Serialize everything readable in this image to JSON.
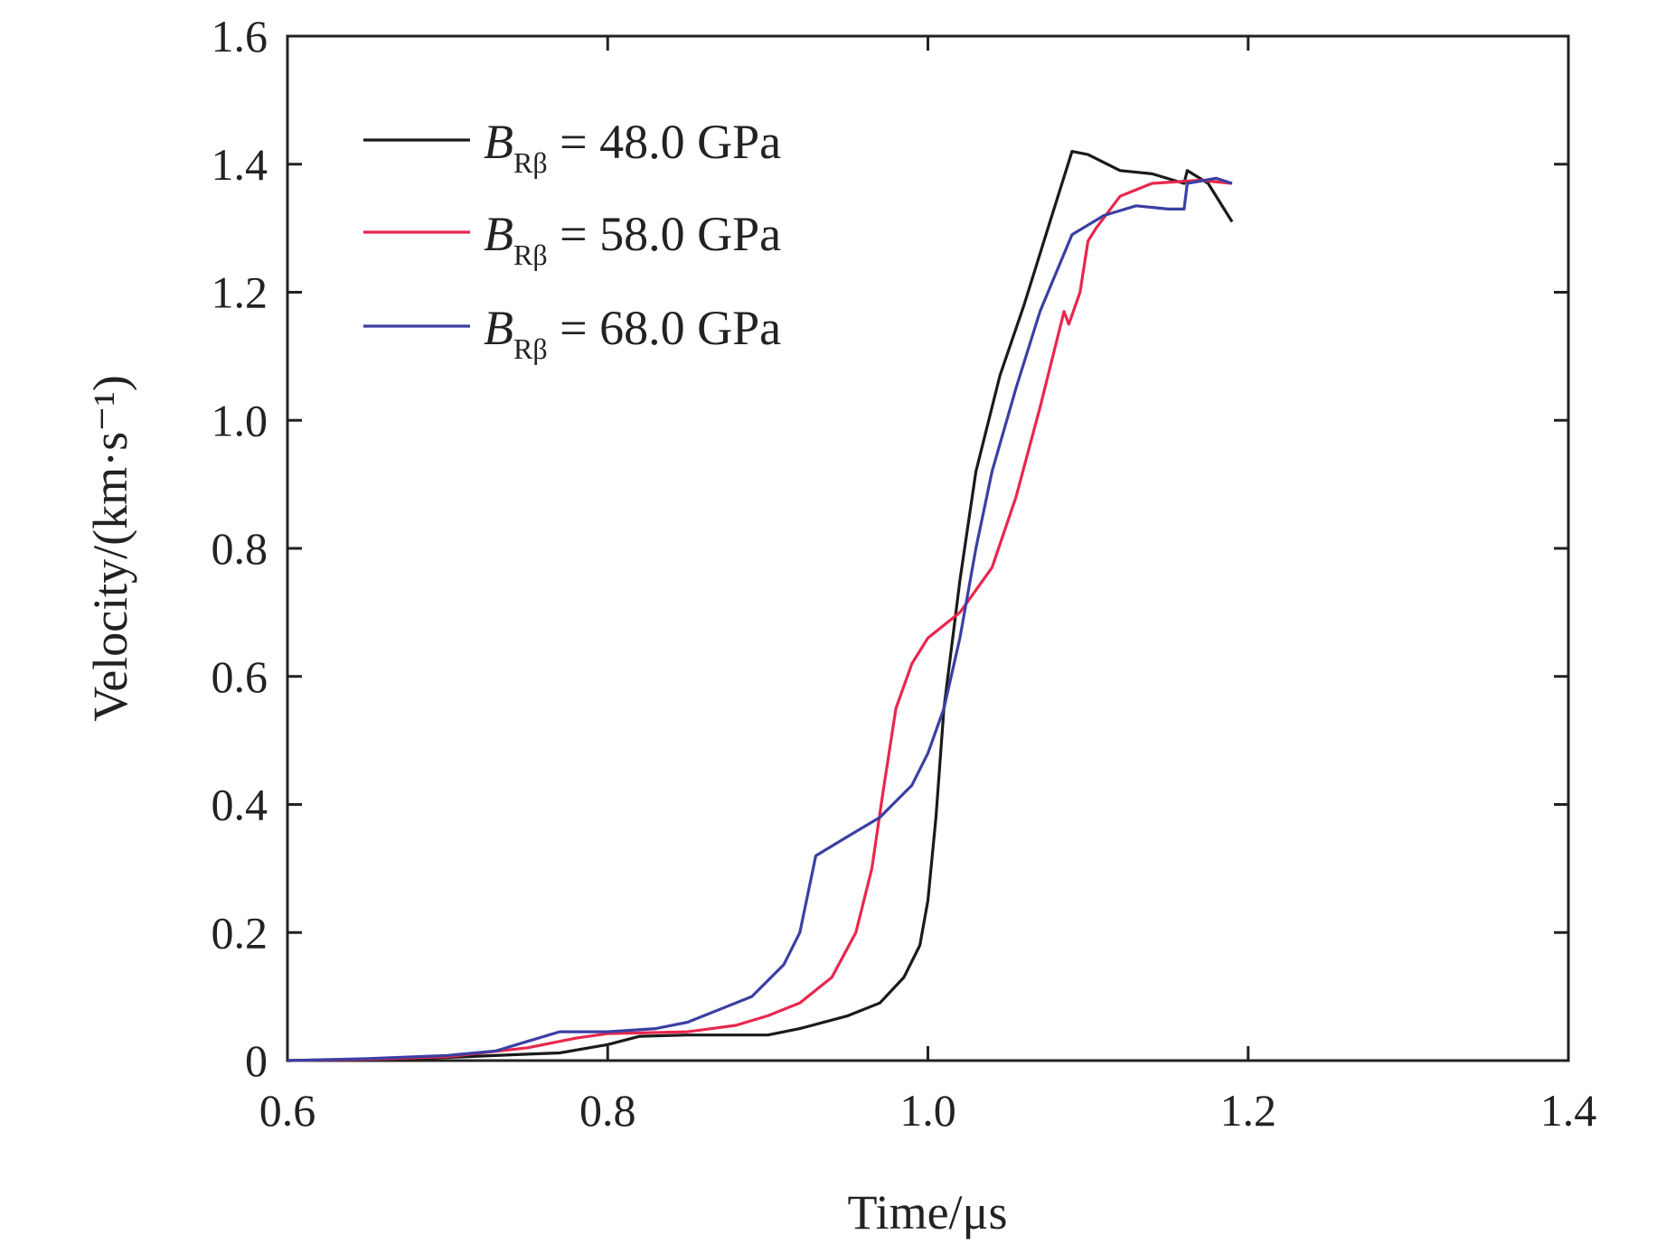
{
  "chart_data": {
    "type": "line",
    "xlabel": "Time/μs",
    "ylabel": "Velocity/(km·s⁻¹)",
    "xlim": [
      0.6,
      1.4
    ],
    "ylim": [
      0,
      1.6
    ],
    "x_ticks": [
      "0.6",
      "0.8",
      "1.0",
      "1.2",
      "1.4"
    ],
    "y_ticks": [
      "0",
      "0.2",
      "0.4",
      "0.6",
      "0.8",
      "1.0",
      "1.2",
      "1.4",
      "1.6"
    ],
    "grid": false,
    "legend_position": "top-left",
    "series": [
      {
        "name": "B_Rβ = 48.0 GPa",
        "legend": {
          "symbol": "B",
          "sub": "Rβ",
          "rest": " = 48.0 GPa"
        },
        "color": "#1a1a1a",
        "points": [
          [
            0.6,
            0.0
          ],
          [
            0.65,
            0.002
          ],
          [
            0.7,
            0.005
          ],
          [
            0.75,
            0.01
          ],
          [
            0.77,
            0.012
          ],
          [
            0.8,
            0.025
          ],
          [
            0.82,
            0.038
          ],
          [
            0.85,
            0.04
          ],
          [
            0.9,
            0.04
          ],
          [
            0.92,
            0.05
          ],
          [
            0.95,
            0.07
          ],
          [
            0.97,
            0.09
          ],
          [
            0.985,
            0.13
          ],
          [
            0.995,
            0.18
          ],
          [
            1.0,
            0.25
          ],
          [
            1.005,
            0.38
          ],
          [
            1.01,
            0.55
          ],
          [
            1.02,
            0.75
          ],
          [
            1.03,
            0.92
          ],
          [
            1.045,
            1.07
          ],
          [
            1.06,
            1.18
          ],
          [
            1.075,
            1.3
          ],
          [
            1.09,
            1.42
          ],
          [
            1.1,
            1.415
          ],
          [
            1.12,
            1.39
          ],
          [
            1.14,
            1.385
          ],
          [
            1.16,
            1.37
          ],
          [
            1.162,
            1.39
          ],
          [
            1.175,
            1.37
          ],
          [
            1.19,
            1.31
          ]
        ]
      },
      {
        "name": "B_Rβ = 58.0 GPa",
        "legend": {
          "symbol": "B",
          "sub": "Rβ",
          "rest": " = 58.0 GPa"
        },
        "color": "#e8274d",
        "points": [
          [
            0.6,
            0.0
          ],
          [
            0.65,
            0.002
          ],
          [
            0.7,
            0.006
          ],
          [
            0.75,
            0.02
          ],
          [
            0.78,
            0.035
          ],
          [
            0.8,
            0.042
          ],
          [
            0.85,
            0.045
          ],
          [
            0.88,
            0.055
          ],
          [
            0.9,
            0.07
          ],
          [
            0.92,
            0.09
          ],
          [
            0.94,
            0.13
          ],
          [
            0.955,
            0.2
          ],
          [
            0.965,
            0.3
          ],
          [
            0.972,
            0.42
          ],
          [
            0.98,
            0.55
          ],
          [
            0.99,
            0.62
          ],
          [
            1.0,
            0.66
          ],
          [
            1.02,
            0.7
          ],
          [
            1.04,
            0.77
          ],
          [
            1.055,
            0.88
          ],
          [
            1.07,
            1.02
          ],
          [
            1.085,
            1.17
          ],
          [
            1.088,
            1.15
          ],
          [
            1.095,
            1.2
          ],
          [
            1.1,
            1.28
          ],
          [
            1.105,
            1.3
          ],
          [
            1.12,
            1.35
          ],
          [
            1.14,
            1.37
          ],
          [
            1.17,
            1.375
          ],
          [
            1.19,
            1.37
          ]
        ]
      },
      {
        "name": "B_Rβ = 68.0 GPa",
        "legend": {
          "symbol": "B",
          "sub": "Rβ",
          "rest": " = 68.0 GPa"
        },
        "color": "#3b3fa3",
        "points": [
          [
            0.6,
            0.0
          ],
          [
            0.65,
            0.003
          ],
          [
            0.7,
            0.008
          ],
          [
            0.73,
            0.015
          ],
          [
            0.75,
            0.03
          ],
          [
            0.77,
            0.045
          ],
          [
            0.8,
            0.045
          ],
          [
            0.83,
            0.05
          ],
          [
            0.85,
            0.06
          ],
          [
            0.87,
            0.08
          ],
          [
            0.89,
            0.1
          ],
          [
            0.91,
            0.15
          ],
          [
            0.92,
            0.2
          ],
          [
            0.93,
            0.32
          ],
          [
            0.95,
            0.35
          ],
          [
            0.97,
            0.38
          ],
          [
            0.99,
            0.43
          ],
          [
            1.0,
            0.48
          ],
          [
            1.01,
            0.55
          ],
          [
            1.02,
            0.66
          ],
          [
            1.03,
            0.8
          ],
          [
            1.04,
            0.92
          ],
          [
            1.055,
            1.05
          ],
          [
            1.07,
            1.17
          ],
          [
            1.09,
            1.29
          ],
          [
            1.1,
            1.305
          ],
          [
            1.11,
            1.32
          ],
          [
            1.13,
            1.335
          ],
          [
            1.15,
            1.33
          ],
          [
            1.16,
            1.33
          ],
          [
            1.162,
            1.37
          ],
          [
            1.18,
            1.378
          ],
          [
            1.19,
            1.37
          ]
        ]
      }
    ]
  }
}
